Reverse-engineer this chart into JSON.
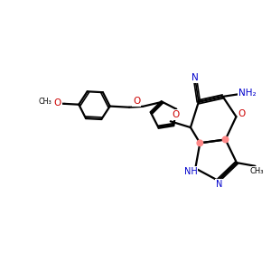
{
  "background_color": "#ffffff",
  "bond_color": "#000000",
  "heteroatom_color": "#cc0000",
  "nitrogen_color": "#0000cc",
  "highlight_color": "#ff8888",
  "figsize": [
    3.0,
    3.0
  ],
  "dpi": 100,
  "xlim": [
    0,
    10
  ],
  "ylim": [
    0,
    10
  ]
}
